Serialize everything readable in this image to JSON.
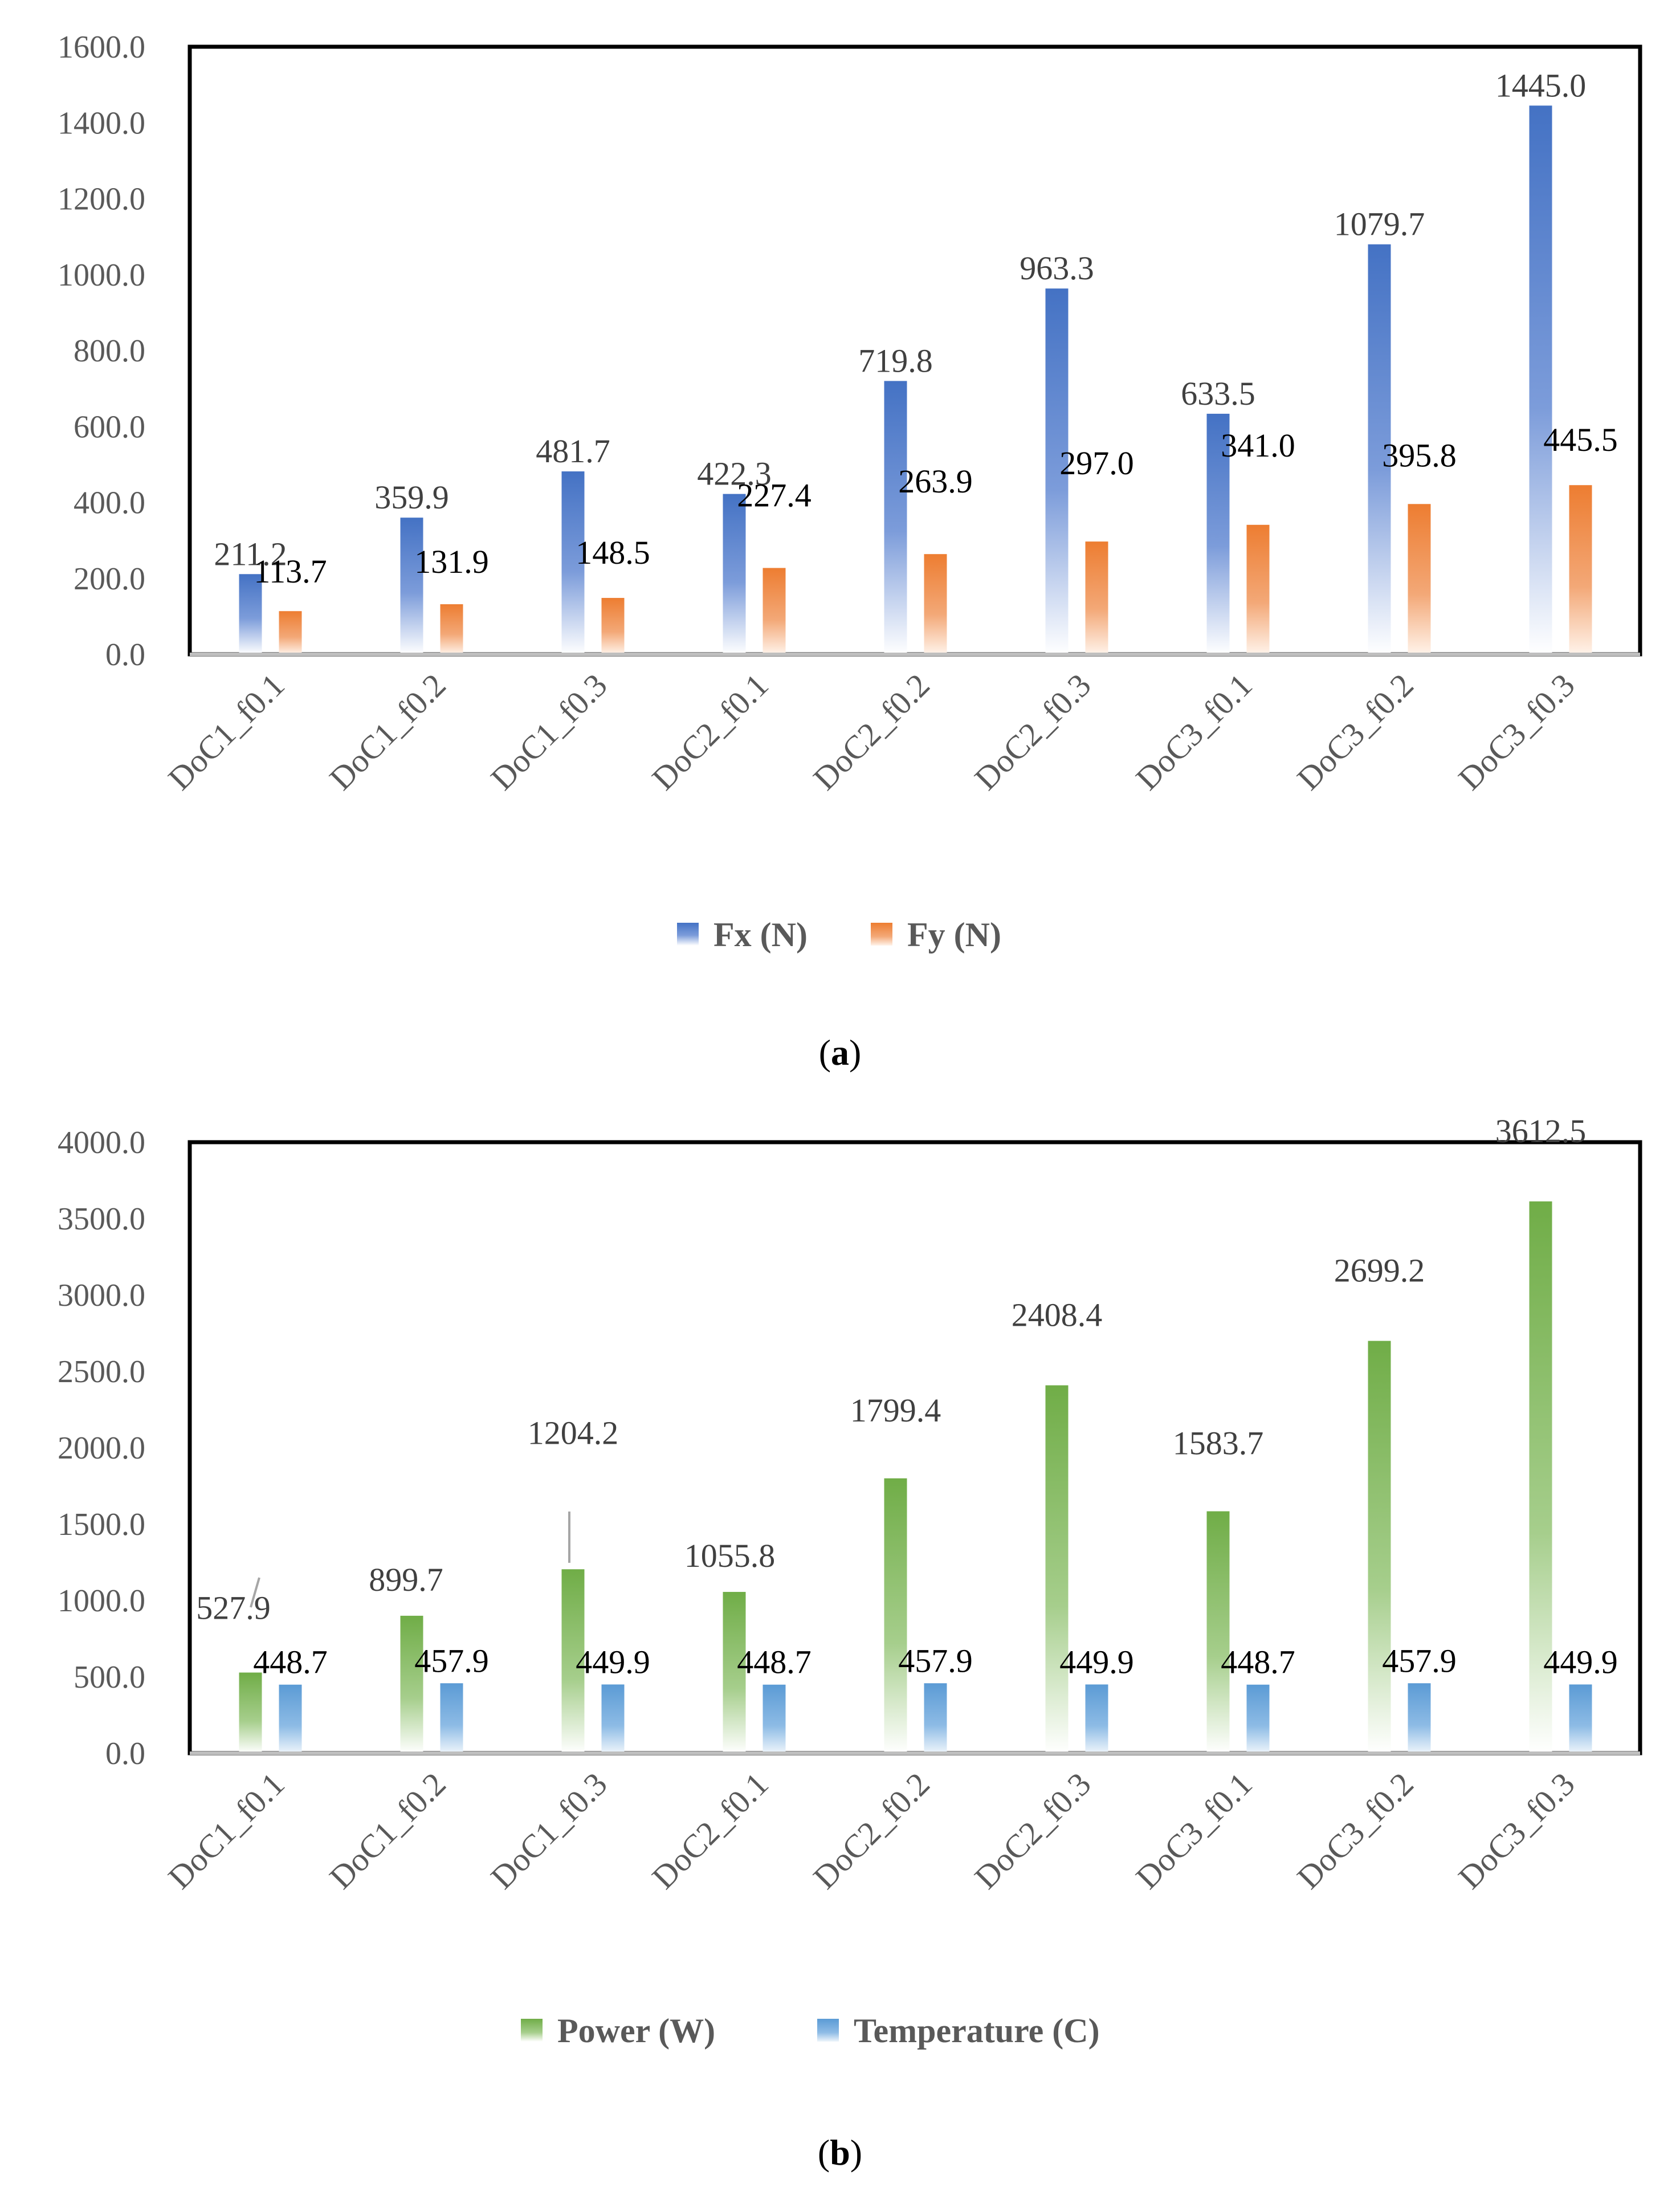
{
  "chart_data": [
    {
      "type": "bar",
      "panel_label": "a",
      "categories": [
        "DoC1_f0.1",
        "DoC1_f0.2",
        "DoC1_f0.3",
        "DoC2_f0.1",
        "DoC2_f0.2",
        "DoC2_f0.3",
        "DoC3_f0.1",
        "DoC3_f0.2",
        "DoC3_f0.3"
      ],
      "series": [
        {
          "name": "Fx (N)",
          "color": "#4472C4",
          "values": [
            211.2,
            359.9,
            481.7,
            422.3,
            719.8,
            963.3,
            633.5,
            1079.7,
            1445.0
          ],
          "labels": [
            "211.2",
            "359.9",
            "481.7",
            "422.3",
            "719.8",
            "963.3",
            "633.5",
            "1079.7",
            "1445.0"
          ]
        },
        {
          "name": "Fy (N)",
          "color": "#ED7D31",
          "values": [
            113.7,
            131.9,
            148.5,
            227.4,
            263.9,
            297.0,
            341.0,
            395.8,
            445.5
          ],
          "labels": [
            "113.7",
            "131.9",
            "148.5",
            "227.4",
            "263.9",
            "297.0",
            "341.0",
            "395.8",
            "445.5"
          ]
        }
      ],
      "yticks": [
        "0.0",
        "200.0",
        "400.0",
        "600.0",
        "800.0",
        "1000.0",
        "1200.0",
        "1400.0",
        "1600.0"
      ],
      "ylim": [
        0,
        1600
      ],
      "ystep": 200,
      "legend_position": "bottom",
      "grid": false,
      "title": "",
      "xlabel": "",
      "ylabel": ""
    },
    {
      "type": "bar",
      "panel_label": "b",
      "categories": [
        "DoC1_f0.1",
        "DoC1_f0.2",
        "DoC1_f0.3",
        "DoC2_f0.1",
        "DoC2_f0.2",
        "DoC2_f0.3",
        "DoC3_f0.1",
        "DoC3_f0.2",
        "DoC3_f0.3"
      ],
      "series": [
        {
          "name": "Power (W)",
          "color": "#70AD47",
          "values": [
            527.9,
            899.7,
            1204.2,
            1055.8,
            1799.4,
            2408.4,
            1583.7,
            2699.2,
            3612.5
          ],
          "labels": [
            "527.9",
            "899.7",
            "1204.2",
            "1055.8",
            "1799.4",
            "2408.4",
            "1583.7",
            "2699.2",
            "3612.5"
          ]
        },
        {
          "name": "Temperature (C)",
          "color": "#5B9BD5",
          "values": [
            448.7,
            457.9,
            449.9,
            448.7,
            457.9,
            449.9,
            448.7,
            457.9,
            449.9
          ],
          "labels": [
            "448.7",
            "457.9",
            "449.9",
            "448.7",
            "457.9",
            "449.9",
            "448.7",
            "457.9",
            "449.9"
          ]
        }
      ],
      "yticks": [
        "0.0",
        "500.0",
        "1000.0",
        "1500.0",
        "2000.0",
        "2500.0",
        "3000.0",
        "3500.0",
        "4000.0"
      ],
      "ylim": [
        0,
        4000
      ],
      "ystep": 500,
      "legend_position": "bottom",
      "grid": false,
      "title": "",
      "xlabel": "",
      "ylabel": ""
    }
  ]
}
